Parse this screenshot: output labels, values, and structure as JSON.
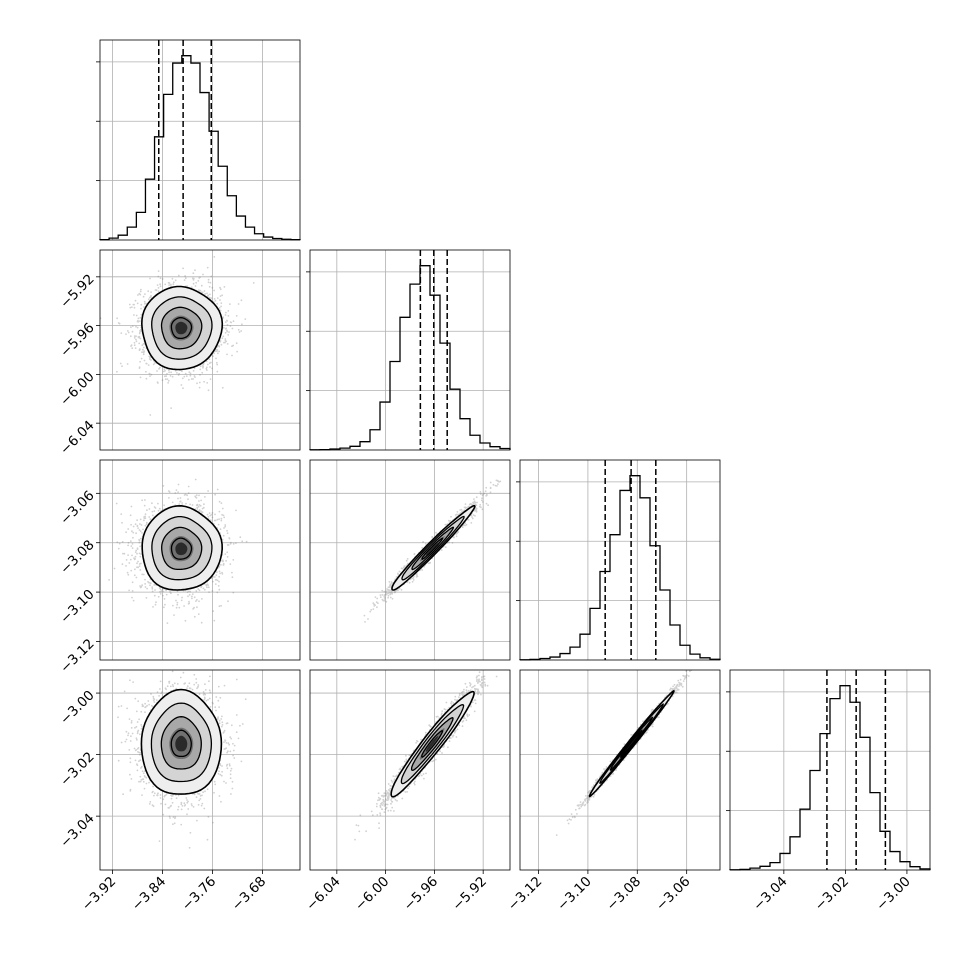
{
  "chart_data": {
    "type": "corner",
    "parameters": [
      "",
      "",
      "",
      ""
    ],
    "grid": true,
    "axes": [
      {
        "min": -3.94,
        "max": -3.62,
        "ticks": [
          -3.92,
          -3.84,
          -3.76,
          -3.68
        ],
        "tick_labels": [
          "−3.92",
          "−3.84",
          "−3.76",
          "−3.68"
        ]
      },
      {
        "min": -6.062,
        "max": -5.898,
        "ticks": [
          -6.04,
          -6.0,
          -5.96,
          -5.92
        ],
        "tick_labels": [
          "−6.04",
          "−6.00",
          "−5.96",
          "−5.92"
        ]
      },
      {
        "min": -3.1275,
        "max": -3.0465,
        "ticks": [
          -3.12,
          -3.1,
          -3.08,
          -3.06
        ],
        "tick_labels": [
          "−3.12",
          "−3.10",
          "−3.08",
          "−3.06"
        ]
      },
      {
        "min": -3.0575,
        "max": -2.9925,
        "ticks": [
          -3.04,
          -3.02,
          -3.0
        ],
        "tick_labels": [
          "−3.04",
          "−3.02",
          "−3.00"
        ]
      }
    ],
    "quantiles": [
      [
        -3.846,
        -3.807,
        -3.762
      ],
      [
        -5.9715,
        -5.9605,
        -5.9495
      ],
      [
        -3.093,
        -3.0825,
        -3.0725
      ],
      [
        -3.026,
        -3.0165,
        -3.007
      ]
    ],
    "histograms": [
      [
        2,
        10,
        26,
        70,
        150,
        330,
        560,
        790,
        960,
        1000,
        960,
        800,
        590,
        400,
        240,
        130,
        70,
        34,
        16,
        8,
        4,
        2
      ],
      [
        1,
        2,
        5,
        10,
        20,
        45,
        110,
        260,
        480,
        720,
        900,
        1000,
        840,
        580,
        330,
        170,
        80,
        38,
        18,
        8
      ],
      [
        1,
        3,
        8,
        16,
        35,
        70,
        140,
        280,
        480,
        680,
        920,
        1000,
        880,
        620,
        380,
        190,
        80,
        32,
        12,
        4
      ],
      [
        1,
        3,
        10,
        20,
        40,
        90,
        180,
        330,
        540,
        740,
        930,
        1000,
        910,
        720,
        420,
        210,
        100,
        45,
        18,
        6
      ]
    ],
    "pairs": [
      {
        "row": 1,
        "col": 0,
        "mean": [
          -3.81,
          -5.962
        ],
        "sd": [
          0.032,
          0.017
        ],
        "corr": 0.0
      },
      {
        "row": 2,
        "col": 0,
        "mean": [
          -3.81,
          -3.0825
        ],
        "sd": [
          0.032,
          0.0085
        ],
        "corr": 0.0
      },
      {
        "row": 2,
        "col": 1,
        "mean": [
          -5.962,
          -3.0825
        ],
        "sd": [
          0.017,
          0.0085
        ],
        "corr": 0.98
      },
      {
        "row": 3,
        "col": 0,
        "mean": [
          -3.81,
          -3.0165
        ],
        "sd": [
          0.032,
          0.0085
        ],
        "corr": 0.0
      },
      {
        "row": 3,
        "col": 1,
        "mean": [
          -5.962,
          -3.0165
        ],
        "sd": [
          0.017,
          0.0085
        ],
        "corr": 0.96
      },
      {
        "row": 3,
        "col": 2,
        "mean": [
          -3.0825,
          -3.0165
        ],
        "sd": [
          0.0085,
          0.0085
        ],
        "corr": 0.995
      }
    ],
    "contour_levels_sigma": [
      0.5,
      1.0,
      1.5,
      2.0
    ]
  }
}
